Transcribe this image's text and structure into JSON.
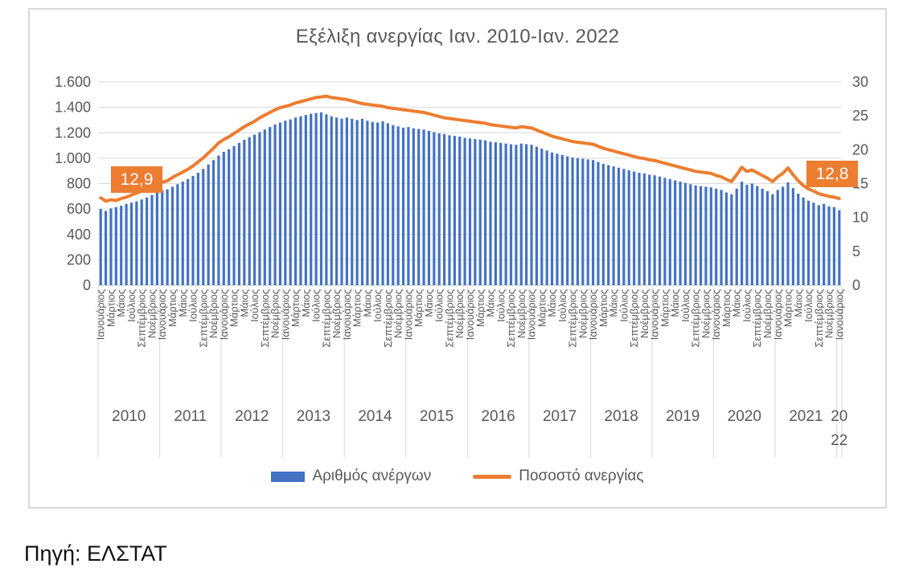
{
  "page": {
    "source_note": "Πηγή: ΕΛΣΤΑΤ"
  },
  "chart": {
    "title": "Εξέλιξη ανεργίας Ιαν. 2010-Ιαν. 2022",
    "first_point_label": "12,9",
    "last_point_label": "12,8",
    "legend_bar_label": "Αριθμός ανέργων",
    "legend_line_label": "Ποσοστό ανεργίας"
  },
  "colors": {
    "bar": "#4472C4",
    "line": "#ED7D31",
    "axis_text": "#595959",
    "grid": "#D9D9D9",
    "axis_line": "#BFBFBF",
    "title_text": "#595959",
    "annotation_bg": "#ED7D31",
    "annotation_text": "#FFFFFF",
    "card_border": "#D9D9D9"
  },
  "chart_data": {
    "type": "combo bar+line, monthly Jan 2010 - Jan 2022",
    "title": "Εξέλιξη ανεργίας Ιαν. 2010-Ιαν. 2022",
    "grid": "horizontal",
    "legend_position": "bottom",
    "left_axis": {
      "min": 0,
      "max": 1600,
      "step": 200,
      "tick_labels": [
        "0",
        "200",
        "400",
        "600",
        "800",
        "1.000",
        "1.200",
        "1.400",
        "1.600"
      ]
    },
    "right_axis": {
      "min": 0,
      "max": 30,
      "step": 5,
      "tick_labels": [
        "0",
        "5",
        "10",
        "15",
        "20",
        "25",
        "30"
      ]
    },
    "x_axis": {
      "month_tick_labels": [
        "Ιανουάριος",
        "Μάρτιος",
        "Μάιος",
        "Ιούλιος",
        "Σεπτέμβριος",
        "Νοέμβριος"
      ],
      "years": [
        "2010",
        "2011",
        "2012",
        "2013",
        "2014",
        "2015",
        "2016",
        "2017",
        "2018",
        "2019",
        "2020",
        "2021",
        "2022"
      ]
    },
    "annotations": [
      {
        "text": "12,9",
        "index": 0,
        "series": "Ποσοστό ανεργίας"
      },
      {
        "text": "12,8",
        "index": 144,
        "series": "Ποσοστό ανεργίας"
      }
    ],
    "series": [
      {
        "name": "Αριθμός ανέργων",
        "type": "bar",
        "axis": "left",
        "unit": "thousands",
        "color": "#4472C4",
        "values": [
          600,
          585,
          605,
          615,
          625,
          640,
          650,
          660,
          675,
          690,
          710,
          730,
          745,
          755,
          775,
          795,
          815,
          835,
          860,
          885,
          915,
          950,
          985,
          1020,
          1050,
          1070,
          1095,
          1120,
          1145,
          1165,
          1185,
          1205,
          1225,
          1245,
          1265,
          1280,
          1295,
          1305,
          1320,
          1330,
          1340,
          1350,
          1355,
          1360,
          1345,
          1330,
          1320,
          1310,
          1320,
          1310,
          1300,
          1310,
          1295,
          1285,
          1280,
          1290,
          1275,
          1260,
          1250,
          1240,
          1245,
          1235,
          1230,
          1225,
          1215,
          1205,
          1195,
          1190,
          1180,
          1175,
          1170,
          1160,
          1155,
          1150,
          1145,
          1140,
          1130,
          1125,
          1120,
          1115,
          1110,
          1105,
          1115,
          1110,
          1105,
          1090,
          1075,
          1060,
          1045,
          1035,
          1025,
          1015,
          1005,
          1000,
          995,
          990,
          985,
          970,
          955,
          945,
          935,
          925,
          915,
          905,
          895,
          885,
          880,
          870,
          865,
          855,
          845,
          835,
          825,
          815,
          805,
          795,
          785,
          780,
          775,
          770,
          760,
          750,
          730,
          715,
          760,
          815,
          790,
          800,
          780,
          760,
          740,
          715,
          750,
          775,
          810,
          765,
          720,
          690,
          665,
          650,
          630,
          640,
          620,
          615,
          590
        ]
      },
      {
        "name": "Ποσοστό ανεργίας",
        "type": "line",
        "axis": "right",
        "unit": "%",
        "color": "#ED7D31",
        "values": [
          12.9,
          12.4,
          12.6,
          12.5,
          12.8,
          13.0,
          13.3,
          13.6,
          13.9,
          14.2,
          14.6,
          15.0,
          15.2,
          15.4,
          15.9,
          16.3,
          16.7,
          17.1,
          17.6,
          18.2,
          18.8,
          19.5,
          20.2,
          21.0,
          21.5,
          21.9,
          22.4,
          22.9,
          23.4,
          23.8,
          24.2,
          24.7,
          25.1,
          25.5,
          25.9,
          26.2,
          26.4,
          26.6,
          26.9,
          27.1,
          27.3,
          27.5,
          27.7,
          27.8,
          27.9,
          27.7,
          27.6,
          27.5,
          27.4,
          27.2,
          27.0,
          26.8,
          26.7,
          26.6,
          26.5,
          26.4,
          26.2,
          26.1,
          26.0,
          25.9,
          25.8,
          25.7,
          25.6,
          25.5,
          25.3,
          25.1,
          24.9,
          24.7,
          24.6,
          24.5,
          24.4,
          24.3,
          24.2,
          24.1,
          24.0,
          23.9,
          23.7,
          23.6,
          23.5,
          23.4,
          23.3,
          23.2,
          23.4,
          23.3,
          23.2,
          22.9,
          22.6,
          22.3,
          22.0,
          21.8,
          21.6,
          21.4,
          21.2,
          21.1,
          21.0,
          20.9,
          20.8,
          20.5,
          20.2,
          20.0,
          19.8,
          19.6,
          19.4,
          19.2,
          19.0,
          18.8,
          18.7,
          18.5,
          18.4,
          18.2,
          18.0,
          17.8,
          17.6,
          17.4,
          17.2,
          17.0,
          16.8,
          16.7,
          16.6,
          16.5,
          16.2,
          16.0,
          15.6,
          15.3,
          16.3,
          17.4,
          16.8,
          17.0,
          16.6,
          16.2,
          15.8,
          15.3,
          16.0,
          16.5,
          17.3,
          16.3,
          15.4,
          14.7,
          14.2,
          13.9,
          13.5,
          13.3,
          13.1,
          13.0,
          12.8
        ]
      }
    ]
  }
}
